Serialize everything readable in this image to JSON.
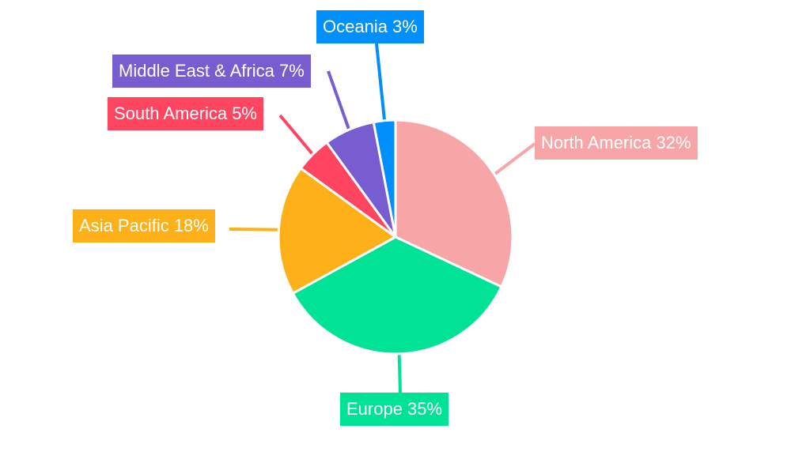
{
  "chart_data": {
    "type": "pie",
    "title": "",
    "start_angle_deg": 0,
    "slices": [
      {
        "name": "North America",
        "value": 32,
        "color": "#f8a5a8",
        "label": "North America 32%"
      },
      {
        "name": "Europe",
        "value": 35,
        "color": "#00e396",
        "label": "Europe 35%"
      },
      {
        "name": "Asia Pacific",
        "value": 18,
        "color": "#feb019",
        "label": "Asia Pacific 18%"
      },
      {
        "name": "South America",
        "value": 5,
        "color": "#ff4560",
        "label": "South America 5%"
      },
      {
        "name": "Middle East & Africa",
        "value": 7,
        "color": "#775dd0",
        "label": "Middle East & Africa 7%"
      },
      {
        "name": "Oceania",
        "value": 3,
        "color": "#008ffb",
        "label": "Oceania 3%"
      }
    ]
  }
}
